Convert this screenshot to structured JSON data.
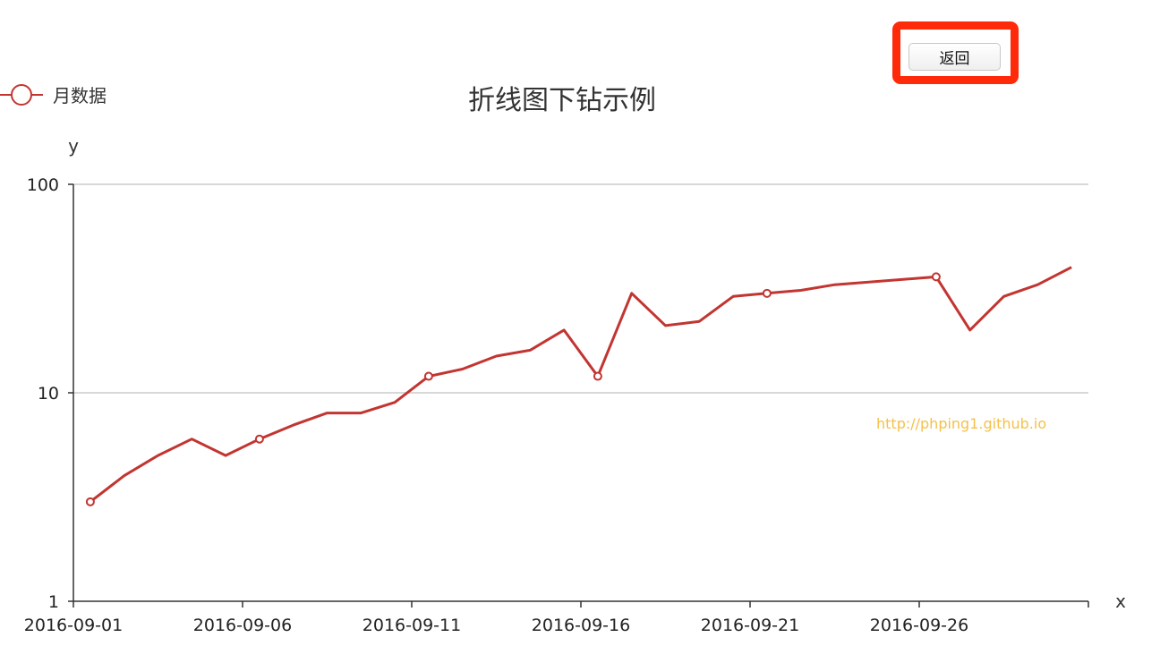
{
  "back_button": {
    "label": "返回"
  },
  "chart_data": {
    "type": "line",
    "title": "折线图下钻示例",
    "legend": {
      "position": "top-left",
      "entries": [
        "月数据"
      ]
    },
    "xlabel": "x",
    "ylabel": "y",
    "yscale": "log",
    "ylim": [
      1,
      100
    ],
    "y_ticks": [
      1,
      10,
      100
    ],
    "x_range": [
      "2016-09-01",
      "2016-10-01"
    ],
    "x_tick_labels": [
      "2016-09-01",
      "2016-09-06",
      "2016-09-11",
      "2016-09-16",
      "2016-09-21",
      "2016-09-26"
    ],
    "grid": true,
    "annotation": "http://phping1.github.io",
    "series": [
      {
        "name": "月数据",
        "color": "#c23531",
        "x": [
          "2016-09-01",
          "2016-09-02",
          "2016-09-03",
          "2016-09-04",
          "2016-09-05",
          "2016-09-06",
          "2016-09-07",
          "2016-09-08",
          "2016-09-09",
          "2016-09-10",
          "2016-09-11",
          "2016-09-12",
          "2016-09-13",
          "2016-09-14",
          "2016-09-15",
          "2016-09-16",
          "2016-09-17",
          "2016-09-18",
          "2016-09-19",
          "2016-09-20",
          "2016-09-21",
          "2016-09-22",
          "2016-09-23",
          "2016-09-26",
          "2016-09-27",
          "2016-09-28",
          "2016-09-29",
          "2016-09-30"
        ],
        "values": [
          3,
          4,
          5,
          6,
          5,
          6,
          7,
          8,
          8,
          9,
          12,
          13,
          15,
          16,
          20,
          12,
          30,
          21,
          22,
          29,
          30,
          31,
          33,
          36,
          20,
          29,
          33,
          40
        ],
        "marked_points": [
          "2016-09-01",
          "2016-09-06",
          "2016-09-11",
          "2016-09-16",
          "2016-09-21",
          "2016-09-26"
        ]
      }
    ]
  }
}
